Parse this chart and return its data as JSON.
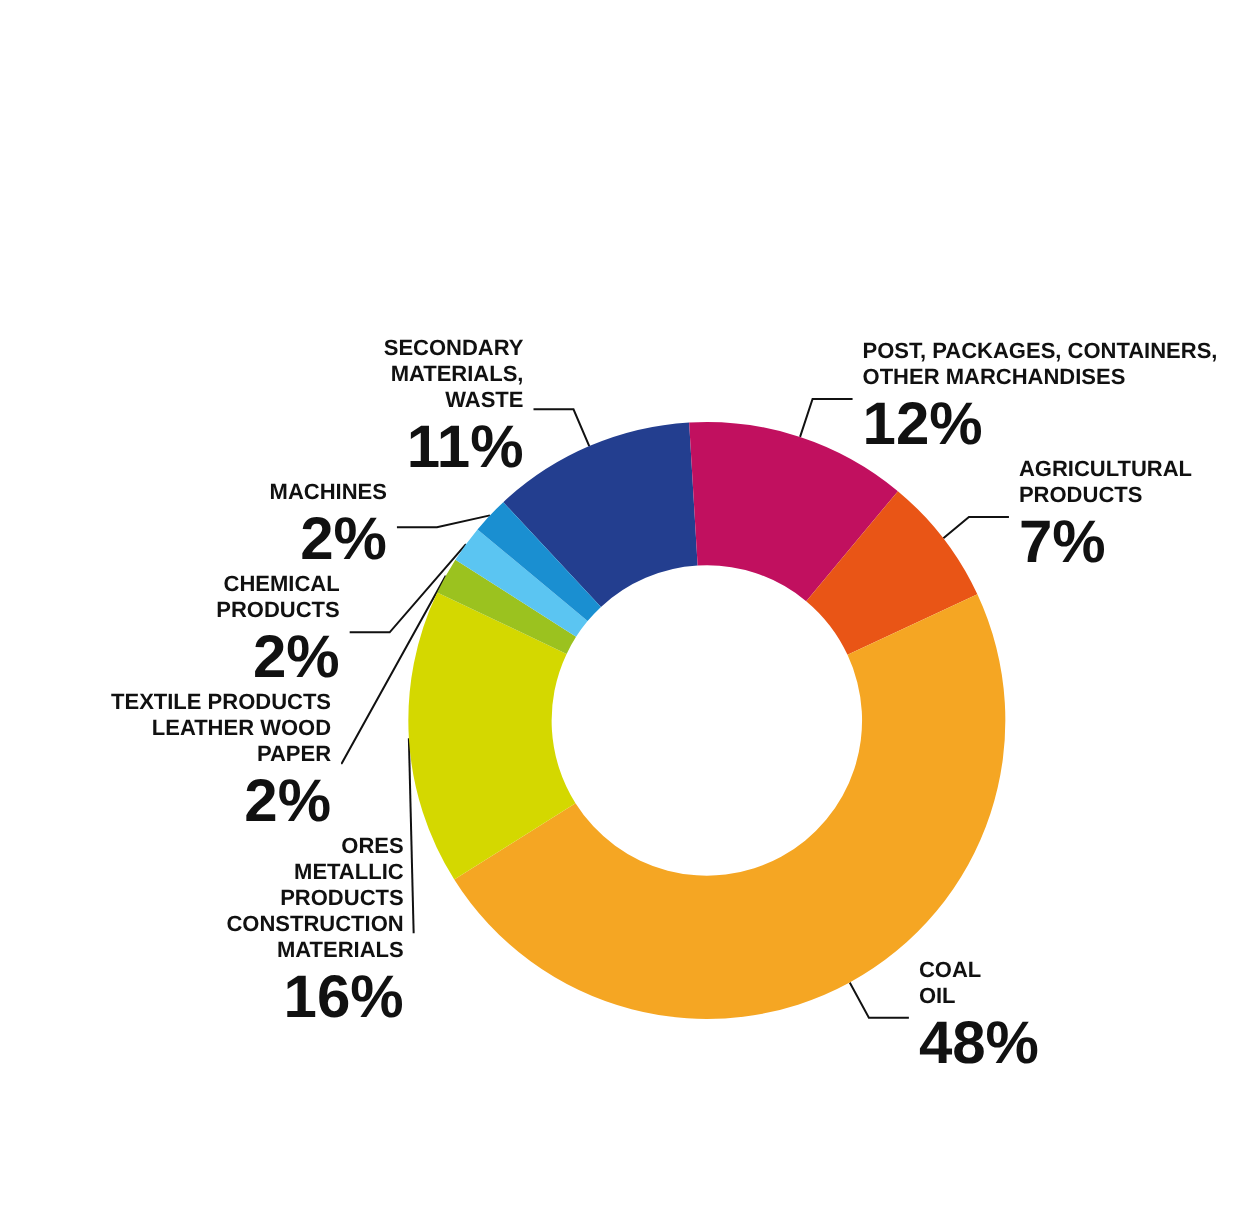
{
  "chart_data": {
    "type": "donut",
    "categories": [
      "SECONDARY\nMATERIALS,\nWASTE",
      "POST, PACKAGES, CONTAINERS,\nOTHER MARCHANDISES",
      "AGRICULTURAL\nPRODUCTS",
      "COAL\nOIL",
      "ORES\nMETALLIC\nPRODUCTS\nCONSTRUCTION\nMATERIALS",
      "TEXTILE PRODUCTS\nLEATHER WOOD\nPAPER",
      "CHEMICAL\nPRODUCTS",
      "MACHINES"
    ],
    "values": [
      11,
      12,
      7,
      48,
      16,
      2,
      2,
      2
    ],
    "colors": [
      "#233e8f",
      "#c1105f",
      "#e95516",
      "#f5a623",
      "#d4d800",
      "#9bc21f",
      "#5bc5f2",
      "#1a8fd1"
    ],
    "value_labels": [
      "11%",
      "12%",
      "7%",
      "48%",
      "16%",
      "2%",
      "2%",
      "2%"
    ],
    "legend": false
  }
}
